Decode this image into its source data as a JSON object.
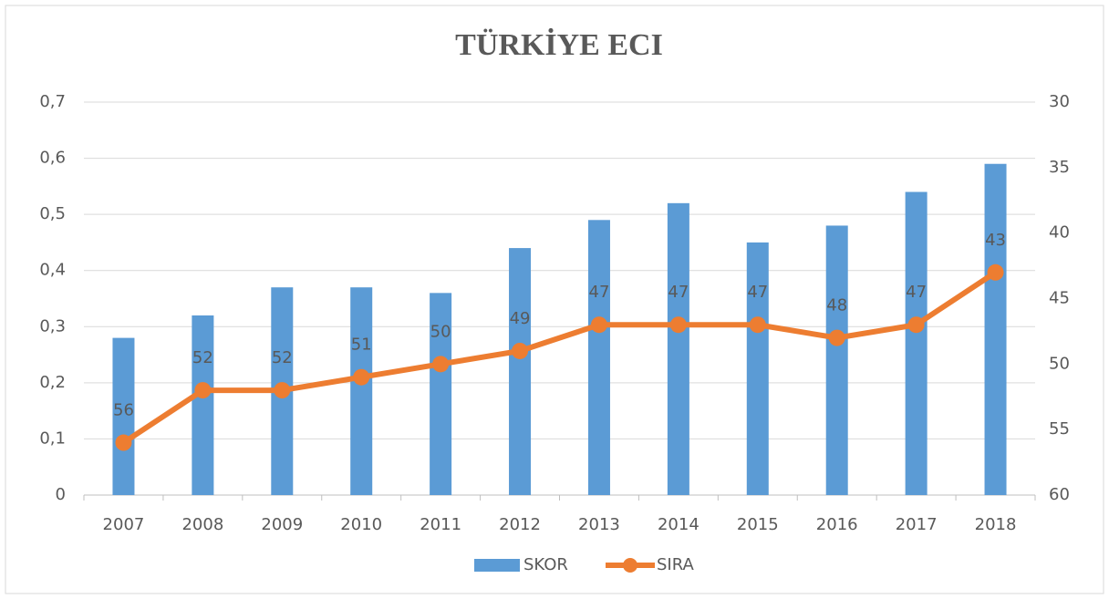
{
  "chart_data": {
    "type": "bar_line",
    "title": "TÜRKİYE ECI",
    "categories": [
      "2007",
      "2008",
      "2009",
      "2010",
      "2011",
      "2012",
      "2013",
      "2014",
      "2015",
      "2016",
      "2017",
      "2018"
    ],
    "series": [
      {
        "name": "SKOR",
        "type": "bar",
        "color": "#5b9bd5",
        "values": [
          0.28,
          0.32,
          0.37,
          0.37,
          0.36,
          0.44,
          0.49,
          0.52,
          0.45,
          0.48,
          0.54,
          0.59
        ]
      },
      {
        "name": "SIRA",
        "type": "line",
        "axis": "y2",
        "color": "#ed7d31",
        "values": [
          56,
          52,
          52,
          51,
          50,
          49,
          47,
          47,
          47,
          48,
          47,
          43
        ],
        "data_labels": true
      }
    ],
    "ylim": [
      0,
      0.7
    ],
    "yticks": [
      0,
      {
        "value": 0.1,
        "label": "0,1"
      },
      {
        "value": 0.2,
        "label": "0,2"
      },
      {
        "value": 0.3,
        "label": "0,3"
      },
      {
        "value": 0.4,
        "label": "0,4"
      },
      {
        "value": 0.5,
        "label": "0,5"
      },
      {
        "value": 0.6,
        "label": "0,6"
      },
      {
        "value": 0.7,
        "label": "0,7"
      }
    ],
    "y2lim": [
      60,
      30
    ],
    "y2ticks": [
      30,
      35,
      40,
      45,
      50,
      55,
      60
    ],
    "grid": true,
    "legend": "bottom"
  }
}
